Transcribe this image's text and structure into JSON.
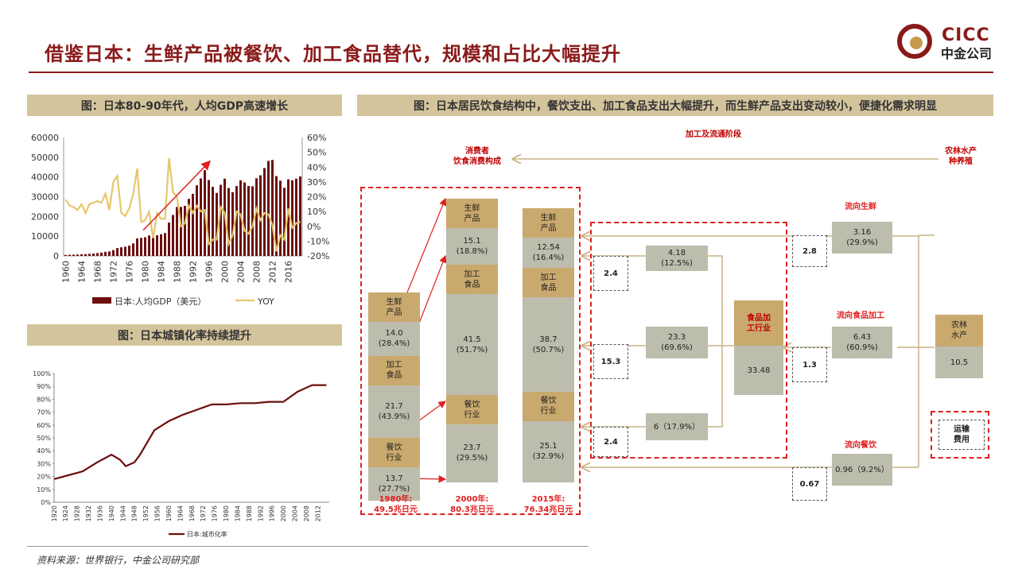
{
  "title": "借鉴日本：生鲜产品被餐饮、加工食品替代，规模和占比大幅提升",
  "logo": {
    "en": "CICC",
    "cn": "中金公司"
  },
  "source": "资料来源：世界银行，中金公司研究部",
  "chart_data": [
    {
      "type": "bar+line",
      "title": "图：日本80-90年代，人均GDP高速增长",
      "categories": [
        1960,
        1961,
        1962,
        1963,
        1964,
        1965,
        1966,
        1967,
        1968,
        1969,
        1970,
        1971,
        1972,
        1973,
        1974,
        1975,
        1976,
        1977,
        1978,
        1979,
        1980,
        1981,
        1982,
        1983,
        1984,
        1985,
        1986,
        1987,
        1988,
        1989,
        1990,
        1991,
        1992,
        1993,
        1994,
        1995,
        1996,
        1997,
        1998,
        1999,
        2000,
        2001,
        2002,
        2003,
        2004,
        2005,
        2006,
        2007,
        2008,
        2009,
        2010,
        2011,
        2012,
        2013,
        2014,
        2015,
        2016,
        2017,
        2018,
        2019
      ],
      "x_ticks": [
        "1960",
        "1964",
        "1968",
        "1972",
        "1976",
        "1980",
        "1984",
        "1988",
        "1992",
        "1996",
        "2000",
        "2004",
        "2008",
        "2012",
        "2016"
      ],
      "series": [
        {
          "name": "日本:人均GDP（美元）",
          "type": "bar",
          "color": "#6b0f0f",
          "axis": "left",
          "values": [
            480,
            560,
            640,
            720,
            840,
            920,
            1060,
            1230,
            1450,
            1670,
            2040,
            2270,
            2950,
            3990,
            4350,
            4660,
            5200,
            6330,
            8820,
            9100,
            9460,
            10360,
            9580,
            10420,
            10980,
            11580,
            16880,
            20750,
            24800,
            24810,
            25360,
            28920,
            31460,
            35770,
            39270,
            43440,
            38440,
            35020,
            31900,
            36030,
            39170,
            34410,
            32290,
            35390,
            38300,
            37220,
            35430,
            35280,
            39340,
            40860,
            44510,
            48170,
            48600,
            40450,
            38110,
            34520,
            38800,
            38330,
            39160,
            40250
          ]
        },
        {
          "name": "YOY",
          "type": "line",
          "color": "#e6c76a",
          "axis": "right",
          "values": [
            18,
            14,
            13,
            11,
            15,
            9,
            15,
            16,
            17,
            16,
            22,
            11,
            30,
            34,
            9,
            7,
            12,
            22,
            39,
            3,
            4,
            10,
            -8,
            9,
            5,
            5,
            46,
            23,
            20,
            0,
            2,
            14,
            9,
            14,
            10,
            11,
            -12,
            -9,
            -9,
            13,
            9,
            -12,
            -6,
            10,
            8,
            -3,
            -5,
            0,
            12,
            4,
            9,
            8,
            1,
            -17,
            -6,
            -9,
            12,
            -1,
            2,
            3
          ]
        }
      ],
      "y_left": {
        "min": 0,
        "max": 60000,
        "ticks": [
          "0",
          "10000",
          "20000",
          "30000",
          "40000",
          "50000",
          "60000"
        ]
      },
      "y_right": {
        "min": -20,
        "max": 60,
        "ticks": [
          "-20%",
          "-10%",
          "0%",
          "10%",
          "20%",
          "30%",
          "40%",
          "50%",
          "60%"
        ]
      },
      "legend": [
        "日本:人均GDP（美元）",
        "YOY"
      ]
    },
    {
      "type": "line",
      "title": "图：日本城镇化率持续提升",
      "x_ticks": [
        "1920",
        "1924",
        "1928",
        "1932",
        "1936",
        "1940",
        "1944",
        "1948",
        "1952",
        "1956",
        "1960",
        "1964",
        "1968",
        "1972",
        "1976",
        "1980",
        "1984",
        "1988",
        "1992",
        "1996",
        "2000",
        "2004",
        "2008",
        "2012"
      ],
      "x": [
        1920,
        1925,
        1930,
        1935,
        1940,
        1943,
        1945,
        1948,
        1950,
        1955,
        1960,
        1965,
        1970,
        1975,
        1980,
        1985,
        1990,
        1995,
        2000,
        2005,
        2010,
        2015
      ],
      "series": [
        {
          "name": "日本:城市化率",
          "color": "#6b0f0f",
          "values": [
            18,
            21,
            24,
            31,
            37,
            33,
            28,
            31,
            37,
            56,
            63,
            68,
            72,
            76,
            76,
            77,
            77,
            78,
            78,
            86,
            91,
            91
          ]
        }
      ],
      "y": {
        "min": 0,
        "max": 100,
        "ticks": [
          "0%",
          "10%",
          "20%",
          "30%",
          "40%",
          "50%",
          "60%",
          "70%",
          "80%",
          "90%",
          "100%"
        ]
      },
      "legend": [
        "日本:城市化率"
      ]
    }
  ],
  "flow": {
    "title": "图：日本居民饮食结构中，餐饮支出、加工食品支出大幅提升，而生鲜产品支出变动较小，便捷化需求明显",
    "stage_mid": "加工及流通阶段",
    "stage_left": [
      "消费者",
      "饮食消费构成"
    ],
    "stage_right": [
      "农林水产",
      "种养殖"
    ],
    "stacks": [
      {
        "year": [
          "1980年:",
          "49.5兆日元"
        ],
        "seg": [
          {
            "label": [
              "生鲜",
              "产品"
            ],
            "kind": "brown"
          },
          {
            "label": [
              "14.0",
              "(28.4%)"
            ],
            "kind": "grey"
          },
          {
            "label": [
              "加工",
              "食品"
            ],
            "kind": "brown"
          },
          {
            "label": [
              "21.7",
              "(43.9%)"
            ],
            "kind": "grey"
          },
          {
            "label": [
              "餐饮",
              "行业"
            ],
            "kind": "brown"
          },
          {
            "label": [
              "13.7",
              "(27.7%)"
            ],
            "kind": "grey"
          }
        ]
      },
      {
        "year": [
          "2000年:",
          "80.3兆日元"
        ],
        "seg": [
          {
            "label": [
              "生鲜",
              "产品"
            ],
            "kind": "brown"
          },
          {
            "label": [
              "15.1",
              "(18.8%)"
            ],
            "kind": "grey"
          },
          {
            "label": [
              "加工",
              "食品"
            ],
            "kind": "brown"
          },
          {
            "label": [
              "41.5",
              "(51.7%)"
            ],
            "kind": "grey"
          },
          {
            "label": [
              "餐饮",
              "行业"
            ],
            "kind": "brown"
          },
          {
            "label": [
              "23.7",
              "(29.5%)"
            ],
            "kind": "grey"
          }
        ]
      },
      {
        "year": [
          "2015年:",
          "76.34兆日元"
        ],
        "seg": [
          {
            "label": [
              "生鲜",
              "产品"
            ],
            "kind": "brown"
          },
          {
            "label": [
              "12.54",
              "(16.4%)"
            ],
            "kind": "grey"
          },
          {
            "label": [
              "加工",
              "食品"
            ],
            "kind": "brown"
          },
          {
            "label": [
              "38.7",
              "(50.7%)"
            ],
            "kind": "grey"
          },
          {
            "label": [
              "餐饮",
              "行业"
            ],
            "kind": "brown"
          },
          {
            "label": [
              "25.1",
              "(32.9%)"
            ],
            "kind": "grey"
          }
        ]
      }
    ],
    "mid_boxes": [
      [
        "4.18",
        "(12.5%)"
      ],
      [
        "23.3",
        "(69.6%)"
      ],
      [
        "6（17.9%）"
      ]
    ],
    "left_dash": [
      "2.4",
      "15.3",
      "2.4"
    ],
    "industry": {
      "label": [
        "食品加",
        "工行业"
      ],
      "value": "33.48"
    },
    "right_labels": [
      "流向生鲜",
      "流向食品加工",
      "流向餐饮"
    ],
    "right_boxes": [
      [
        "3.16",
        "(29.9%)"
      ],
      [
        "6.43",
        "(60.9%)"
      ],
      [
        "0.96（9.2%）"
      ]
    ],
    "right_dash": [
      "2.8",
      "1.3",
      "0.67"
    ],
    "source_box": {
      "label": [
        "农林",
        "水产"
      ],
      "value": "10.5"
    },
    "transport": [
      "运输",
      "费用"
    ]
  }
}
